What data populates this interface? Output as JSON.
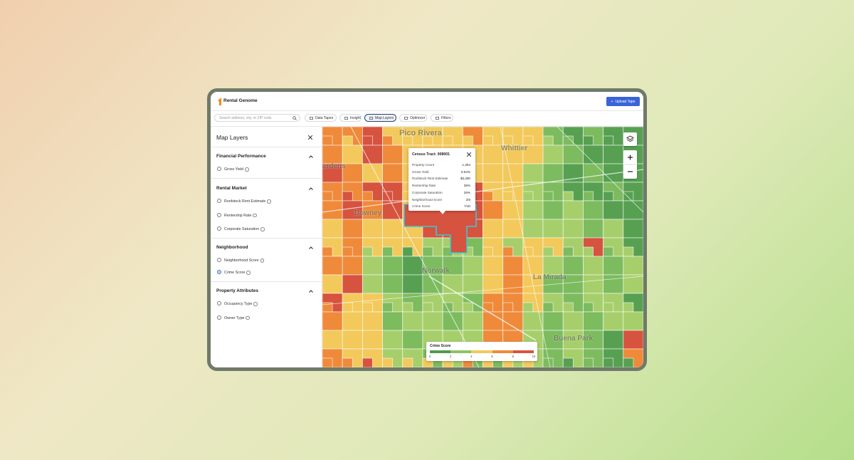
{
  "app": {
    "brand": "Rental Genome",
    "upload_button": "Upload Tape",
    "search_placeholder": "Search address, city, or ZIP code",
    "tabs": [
      "Data Tapes",
      "Insight",
      "Map Layers",
      "Optimizer",
      "Filters"
    ],
    "active_tab": 2
  },
  "panel": {
    "title": "Map Layers",
    "selected": "Crime Score",
    "sections": [
      {
        "title": "Financial Performance",
        "options": [
          "Gross Yield"
        ]
      },
      {
        "title": "Rental Market",
        "options": [
          "Roofstock Rent Estimate",
          "Rentership Rate",
          "Corporate Saturation"
        ]
      },
      {
        "title": "Neighborhood",
        "options": [
          "Neighborhood Score",
          "Crime Score"
        ]
      },
      {
        "title": "Property Attributes",
        "options": [
          "Occupancy Type",
          "Owner Type"
        ]
      }
    ]
  },
  "map": {
    "places": [
      "Pico Rivera",
      "Whittier",
      "Gardens",
      "Downey",
      "Norwalk",
      "La Mirada",
      "Buena Park"
    ]
  },
  "popup": {
    "title": "Census Tract: 008001",
    "rows": [
      [
        "Property Count",
        "1,364"
      ],
      [
        "Gross Yield",
        "5.54%"
      ],
      [
        "Roofstock Rent Estimate",
        "$3,250"
      ],
      [
        "Rentership Rate",
        "35%"
      ],
      [
        "Corporate Saturation",
        "28%"
      ],
      [
        "Neighborhood Score",
        "2/5"
      ],
      [
        "Crime Score",
        "7/10"
      ]
    ]
  },
  "legend": {
    "title": "Crime Score",
    "ticks": [
      "0",
      "2",
      "4",
      "6",
      "8",
      "10"
    ],
    "colors": [
      "#4f9a50",
      "#8cc464",
      "#f3c95c",
      "#ef8a3a",
      "#d6533f"
    ]
  }
}
